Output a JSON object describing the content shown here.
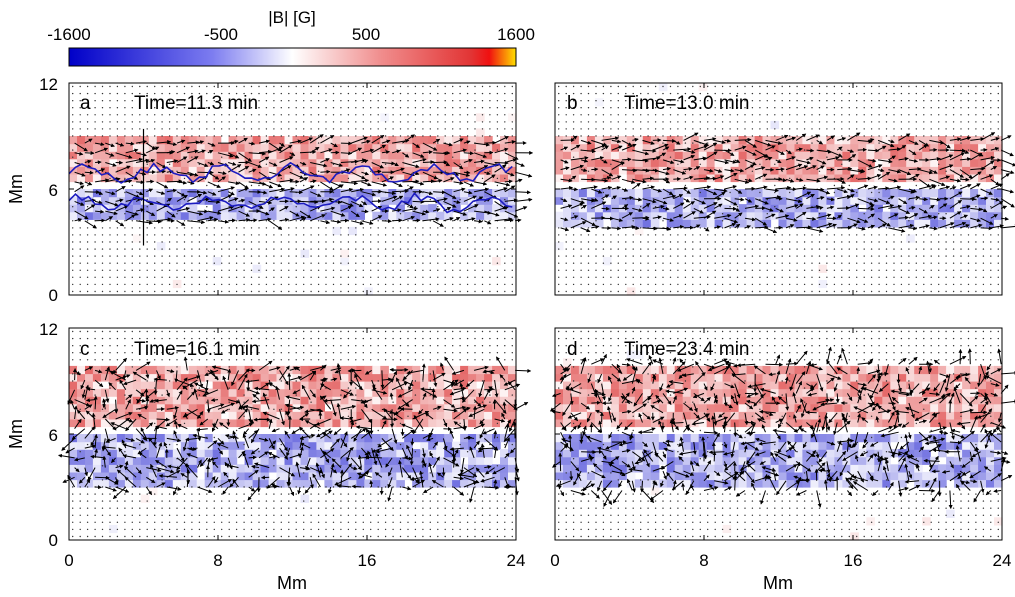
{
  "colorbar": {
    "label": "|B| [G]",
    "ticks": [
      "-1600",
      "-500",
      "500",
      "1600"
    ],
    "tick_values": [
      -1600,
      -500,
      500,
      1600
    ],
    "range": [
      -1600,
      1600
    ],
    "colors": {
      "negative": "#0000c8",
      "zero": "#ffffff",
      "positive": "#d81f1f",
      "max": "#ffe000"
    }
  },
  "axes": {
    "ylabel": "Mm",
    "xlabel": "Mm",
    "xticks": [
      "0",
      "8",
      "16",
      "24"
    ],
    "yticks": [
      "0",
      "6",
      "12"
    ]
  },
  "chart_data": [
    {
      "type": "heatmap",
      "panel": "a",
      "annotation": "Time=11.3 min",
      "xlim": [
        0,
        24
      ],
      "ylim": [
        0,
        12
      ],
      "positive_band_y": [
        6.3,
        9.0
      ],
      "negative_band_y": [
        4.2,
        6.0
      ],
      "contour_color": "#1c1cc0",
      "has_contours": true,
      "slit_x": 4.0,
      "slit_y": [
        2.8,
        9.4
      ]
    },
    {
      "type": "heatmap",
      "panel": "b",
      "annotation": "Time=13.0 min",
      "xlim": [
        0,
        24
      ],
      "ylim": [
        0,
        12
      ],
      "positive_band_y": [
        6.3,
        9.0
      ],
      "negative_band_y": [
        3.8,
        6.2
      ],
      "has_contours": false
    },
    {
      "type": "heatmap",
      "panel": "c",
      "annotation": "Time=16.1 min",
      "xlim": [
        0,
        24
      ],
      "ylim": [
        0,
        12
      ],
      "positive_band_y": [
        6.5,
        10.0
      ],
      "negative_band_y": [
        3.0,
        6.0
      ],
      "has_contours": false
    },
    {
      "type": "heatmap",
      "panel": "d",
      "annotation": "Time=23.4 min",
      "xlim": [
        0,
        24
      ],
      "ylim": [
        0,
        12
      ],
      "positive_band_y": [
        6.5,
        10.0
      ],
      "negative_band_y": [
        2.8,
        6.0
      ],
      "has_contours": false
    }
  ]
}
